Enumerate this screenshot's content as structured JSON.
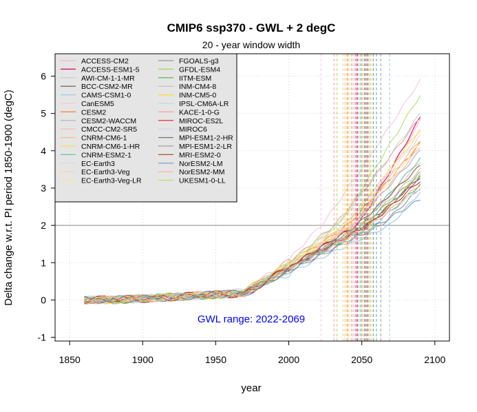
{
  "chart_data": {
    "type": "line",
    "title": "CMIP6 ssp370 - GWL + 2 degC",
    "subtitle": "20 - year window width",
    "xlabel": "year",
    "ylabel": "Delta change w.r.t. PI period 1850-1900 (degC)",
    "xlim": [
      1840,
      2110
    ],
    "ylim": [
      -1.1,
      6.6
    ],
    "x_ticks": [
      1850,
      1900,
      1950,
      2000,
      2050,
      2100
    ],
    "y_ticks": [
      -1,
      0,
      1,
      2,
      3,
      4,
      5,
      6
    ],
    "grid": true,
    "grid_style": "dotted",
    "threshold_line": 2,
    "annotation": "GWL range: 2022-2069",
    "annotation_color": "#0000ff",
    "legend_position": "top-left",
    "series": [
      {
        "name": "ACCESS-CM2",
        "color": "#f4b6d0",
        "cross_year": 2045,
        "end_value": 4.8
      },
      {
        "name": "ACCESS-ESM1-5",
        "color": "#d6006f",
        "cross_year": 2047,
        "end_value": 4.9
      },
      {
        "name": "AWI-CM-1-1-MR",
        "color": "#c8c8c8",
        "cross_year": 2048,
        "end_value": 3.7
      },
      {
        "name": "BCC-CSM2-MR",
        "color": "#555555",
        "cross_year": 2052,
        "end_value": 3.3
      },
      {
        "name": "CAMS-CSM1-0",
        "color": "#9ecae1",
        "cross_year": 2069,
        "end_value": 2.9
      },
      {
        "name": "CanESM5",
        "color": "#f7c6dd",
        "cross_year": 2022,
        "end_value": 5.9
      },
      {
        "name": "CESM2",
        "color": "#f08030",
        "cross_year": 2040,
        "end_value": 4.2
      },
      {
        "name": "CESM2-WACCM",
        "color": "#b0b0b0",
        "cross_year": 2043,
        "end_value": 4.0
      },
      {
        "name": "CMCC-CM2-SR5",
        "color": "#fbb4ae",
        "cross_year": 2044,
        "end_value": 4.1
      },
      {
        "name": "CNRM-CM6-1",
        "color": "#fdbb84",
        "cross_year": 2041,
        "end_value": 4.3
      },
      {
        "name": "CNRM-CM6-1-HR",
        "color": "#fde047",
        "cross_year": 2039,
        "end_value": 4.6
      },
      {
        "name": "CNRM-ESM2-1",
        "color": "#66c2a4",
        "cross_year": 2049,
        "end_value": 3.8
      },
      {
        "name": "EC-Earth3",
        "color": "#d9d9d9",
        "cross_year": 2038,
        "end_value": 4.4
      },
      {
        "name": "EC-Earth3-Veg",
        "color": "#fdd0a2",
        "cross_year": 2037,
        "end_value": 4.5
      },
      {
        "name": "EC-Earth3-Veg-LR",
        "color": "#fee391",
        "cross_year": 2042,
        "end_value": 4.2
      },
      {
        "name": "FGOALS-g3",
        "color": "#969696",
        "cross_year": 2063,
        "end_value": 3.0
      },
      {
        "name": "GFDL-ESM4",
        "color": "#a6d854",
        "cross_year": 2055,
        "end_value": 3.4
      },
      {
        "name": "IITM-ESM",
        "color": "#4daf4a",
        "cross_year": 2058,
        "end_value": 3.1
      },
      {
        "name": "INM-CM4-8",
        "color": "#bdbdbd",
        "cross_year": 2050,
        "end_value": 3.5
      },
      {
        "name": "INM-CM5-0",
        "color": "#ffd92f",
        "cross_year": 2051,
        "end_value": 3.4
      },
      {
        "name": "IPSL-CM6A-LR",
        "color": "#b3e2cd",
        "cross_year": 2033,
        "end_value": 5.0
      },
      {
        "name": "KACE-1-0-G",
        "color": "#fb9a99",
        "cross_year": 2031,
        "end_value": 4.9
      },
      {
        "name": "MIROC-ES2L",
        "color": "#e41a1c",
        "cross_year": 2054,
        "end_value": 3.2
      },
      {
        "name": "MIROC6",
        "color": "#cbd5e8",
        "cross_year": 2057,
        "end_value": 3.0
      },
      {
        "name": "MPI-ESM1-2-HR",
        "color": "#737373",
        "cross_year": 2053,
        "end_value": 3.3
      },
      {
        "name": "MPI-ESM1-2-LR",
        "color": "#a0a0a0",
        "cross_year": 2050,
        "end_value": 3.4
      },
      {
        "name": "MRI-ESM2-0",
        "color": "#a6522c",
        "cross_year": 2046,
        "end_value": 3.6
      },
      {
        "name": "NorESM2-LM",
        "color": "#6b9ac4",
        "cross_year": 2060,
        "end_value": 2.7
      },
      {
        "name": "NorESM2-MM",
        "color": "#fcae91",
        "cross_year": 2056,
        "end_value": 3.1
      },
      {
        "name": "UKESM1-0-LL",
        "color": "#b8de6f",
        "cross_year": 2033,
        "end_value": 5.5
      }
    ]
  }
}
